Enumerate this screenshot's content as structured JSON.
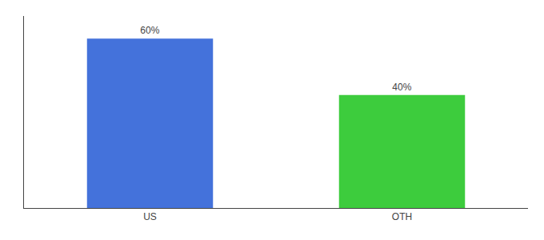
{
  "chart_data": {
    "type": "bar",
    "categories": [
      "US",
      "OTH"
    ],
    "values": [
      60,
      40
    ],
    "value_labels": [
      "60%",
      "40%"
    ],
    "colors": [
      "#4472db",
      "#3dcc3d"
    ],
    "ylim": [
      0,
      68
    ],
    "yticks": [],
    "data_labels": true,
    "tick_labels": "x",
    "grid": false
  }
}
